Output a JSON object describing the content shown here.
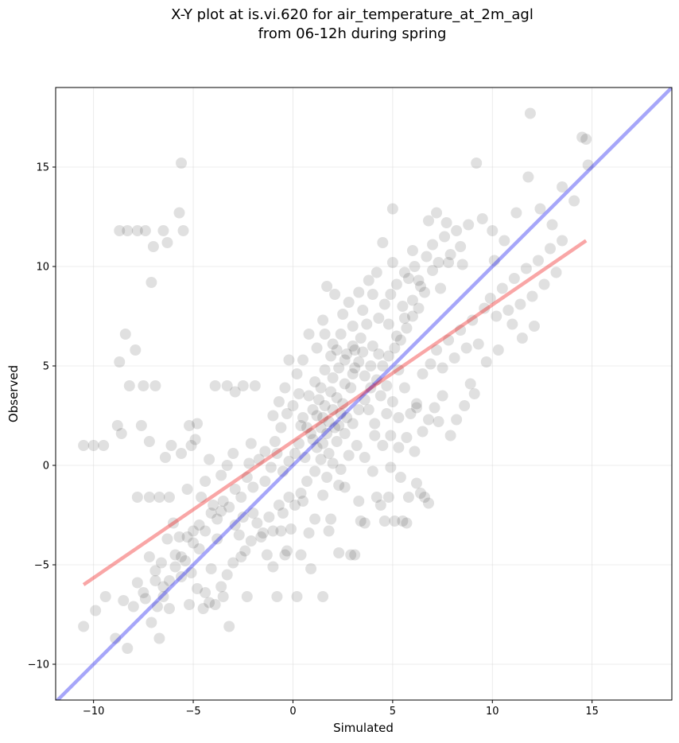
{
  "chart_data": {
    "type": "scatter",
    "title_lines": [
      "X-Y plot at is.vi.620 for air_temperature_at_2m_agl",
      "from 06-12h during spring"
    ],
    "xlabel": "Simulated",
    "ylabel": "Observed",
    "xlim": [
      -11.9,
      19.0
    ],
    "ylim": [
      -11.8,
      19.0
    ],
    "xticks": [
      {
        "value": -10,
        "label": "−10"
      },
      {
        "value": -5,
        "label": "−5"
      },
      {
        "value": 0,
        "label": "0"
      },
      {
        "value": 5,
        "label": "5"
      },
      {
        "value": 10,
        "label": "10"
      },
      {
        "value": 15,
        "label": "15"
      }
    ],
    "yticks": [
      {
        "value": -10,
        "label": "−10"
      },
      {
        "value": -5,
        "label": "−5"
      },
      {
        "value": 0,
        "label": "0"
      },
      {
        "value": 5,
        "label": "5"
      },
      {
        "value": 10,
        "label": "10"
      },
      {
        "value": 15,
        "label": "15"
      }
    ],
    "grid": true,
    "point_color": "#000000",
    "point_opacity": 0.12,
    "points": [
      [
        -10.5,
        -8.1
      ],
      [
        -9.9,
        -7.3
      ],
      [
        -9.4,
        -6.6
      ],
      [
        -8.9,
        -8.7
      ],
      [
        -8.5,
        -6.8
      ],
      [
        -8.3,
        -9.2
      ],
      [
        -8.0,
        -7.1
      ],
      [
        -7.8,
        -5.9
      ],
      [
        -7.5,
        -6.4
      ],
      [
        -7.2,
        -4.6
      ],
      [
        -6.9,
        -5.3
      ],
      [
        -6.7,
        -8.7
      ],
      [
        -6.5,
        -6.1
      ],
      [
        -6.2,
        -7.2
      ],
      [
        -5.9,
        -4.5
      ],
      [
        -5.6,
        -5.6
      ],
      [
        -5.2,
        -7.0
      ],
      [
        -5.0,
        -3.3
      ],
      [
        -4.7,
        -4.2
      ],
      [
        -4.4,
        -6.4
      ],
      [
        -4.1,
        -5.2
      ],
      [
        -3.8,
        -3.7
      ],
      [
        -3.5,
        -6.6
      ],
      [
        -3.2,
        -8.1
      ],
      [
        -2.9,
        -3.0
      ],
      [
        -2.6,
        -4.6
      ],
      [
        -2.3,
        -6.6
      ],
      [
        -2.0,
        -2.4
      ],
      [
        -1.6,
        -3.6
      ],
      [
        -1.3,
        -4.5
      ],
      [
        -1.0,
        -5.1
      ],
      [
        -0.7,
        -2.0
      ],
      [
        -0.4,
        -4.5
      ],
      [
        -0.1,
        -3.2
      ],
      [
        0.2,
        -6.6
      ],
      [
        0.5,
        -1.8
      ],
      [
        0.8,
        -3.4
      ],
      [
        1.1,
        -2.7
      ],
      [
        1.5,
        -1.5
      ],
      [
        1.9,
        -2.7
      ],
      [
        2.3,
        -4.4
      ],
      [
        2.6,
        -1.1
      ],
      [
        2.9,
        -4.5
      ],
      [
        3.3,
        -1.8
      ],
      [
        3.6,
        -2.9
      ],
      [
        4.0,
        -0.3
      ],
      [
        4.4,
        -2.0
      ],
      [
        4.8,
        -1.6
      ],
      [
        5.1,
        -2.8
      ],
      [
        5.4,
        -0.6
      ],
      [
        5.8,
        -1.6
      ],
      [
        6.2,
        -0.9
      ],
      [
        6.6,
        -1.6
      ],
      [
        6.8,
        -1.9
      ],
      [
        5.5,
        -2.8
      ],
      [
        4.6,
        -2.8
      ],
      [
        3.1,
        -4.5
      ],
      [
        1.5,
        -6.6
      ],
      [
        0.9,
        -5.2
      ],
      [
        -0.8,
        -6.6
      ],
      [
        -10.5,
        1.0
      ],
      [
        -10.0,
        1.0
      ],
      [
        -9.5,
        1.0
      ],
      [
        -8.8,
        2.0
      ],
      [
        -8.6,
        1.6
      ],
      [
        -8.2,
        4.0
      ],
      [
        -7.9,
        5.8
      ],
      [
        -7.6,
        2.0
      ],
      [
        -7.2,
        1.2
      ],
      [
        -6.9,
        4.0
      ],
      [
        -6.4,
        0.4
      ],
      [
        -6.1,
        1.0
      ],
      [
        -5.6,
        0.6
      ],
      [
        -5.1,
        1.0
      ],
      [
        -4.8,
        2.1
      ],
      [
        -4.2,
        0.3
      ],
      [
        -3.9,
        4.0
      ],
      [
        -3.3,
        4.0
      ],
      [
        -2.9,
        3.7
      ],
      [
        -2.5,
        4.0
      ],
      [
        -2.1,
        1.1
      ],
      [
        -1.9,
        4.0
      ],
      [
        -1.4,
        0.7
      ],
      [
        -1.0,
        2.5
      ],
      [
        -8.7,
        11.8
      ],
      [
        -8.3,
        11.8
      ],
      [
        -7.8,
        11.8
      ],
      [
        -7.4,
        11.8
      ],
      [
        -6.5,
        11.8
      ],
      [
        -6.3,
        11.2
      ],
      [
        -5.5,
        11.8
      ],
      [
        -7.0,
        11.0
      ],
      [
        -7.1,
        9.2
      ],
      [
        -5.7,
        12.7
      ],
      [
        -5.6,
        15.2
      ],
      [
        -8.4,
        6.6
      ],
      [
        -8.7,
        5.2
      ],
      [
        -7.5,
        4.0
      ],
      [
        -5.2,
        2.0
      ],
      [
        -4.9,
        1.3
      ],
      [
        0.3,
        1.1
      ],
      [
        0.6,
        0.4
      ],
      [
        0.9,
        1.6
      ],
      [
        1.2,
        2.5
      ],
      [
        1.4,
        1.9
      ],
      [
        1.6,
        3.0
      ],
      [
        1.8,
        2.2
      ],
      [
        2.0,
        2.8
      ],
      [
        2.2,
        3.4
      ],
      [
        2.4,
        2.6
      ],
      [
        1.0,
        2.8
      ],
      [
        1.3,
        3.3
      ],
      [
        1.5,
        2.4
      ],
      [
        1.7,
        1.6
      ],
      [
        1.9,
        3.7
      ],
      [
        2.1,
        1.9
      ],
      [
        2.3,
        2.0
      ],
      [
        2.5,
        3.1
      ],
      [
        2.7,
        2.4
      ],
      [
        2.9,
        3.9
      ],
      [
        0.8,
        3.5
      ],
      [
        1.1,
        4.2
      ],
      [
        1.4,
        3.9
      ],
      [
        1.6,
        4.8
      ],
      [
        2.0,
        4.4
      ],
      [
        2.3,
        4.9
      ],
      [
        2.6,
        4.1
      ],
      [
        3.0,
        4.6
      ],
      [
        3.3,
        5.2
      ],
      [
        3.6,
        4.5
      ],
      [
        0.5,
        2.4
      ],
      [
        0.7,
        1.9
      ],
      [
        1.0,
        1.3
      ],
      [
        1.2,
        0.9
      ],
      [
        1.5,
        1.1
      ],
      [
        1.8,
        0.6
      ],
      [
        2.2,
        1.2
      ],
      [
        2.6,
        1.6
      ],
      [
        3.0,
        2.1
      ],
      [
        3.3,
        2.8
      ],
      [
        3.6,
        3.3
      ],
      [
        3.9,
        3.9
      ],
      [
        4.2,
        4.3
      ],
      [
        4.5,
        5.0
      ],
      [
        4.8,
        5.5
      ],
      [
        5.1,
        5.9
      ],
      [
        5.4,
        6.3
      ],
      [
        5.7,
        6.9
      ],
      [
        6.0,
        7.5
      ],
      [
        6.3,
        7.9
      ],
      [
        3.1,
        5.8
      ],
      [
        3.4,
        6.4
      ],
      [
        3.7,
        7.1
      ],
      [
        4.0,
        6.0
      ],
      [
        4.3,
        7.4
      ],
      [
        4.6,
        8.1
      ],
      [
        4.9,
        8.6
      ],
      [
        5.2,
        9.1
      ],
      [
        5.5,
        8.0
      ],
      [
        5.8,
        9.4
      ],
      [
        6.1,
        10.0
      ],
      [
        6.4,
        9.0
      ],
      [
        6.7,
        10.5
      ],
      [
        7.0,
        11.1
      ],
      [
        7.3,
        10.2
      ],
      [
        7.6,
        11.5
      ],
      [
        7.9,
        10.6
      ],
      [
        8.2,
        11.8
      ],
      [
        8.5,
        10.1
      ],
      [
        8.8,
        12.1
      ],
      [
        2.4,
        6.6
      ],
      [
        2.0,
        6.1
      ],
      [
        1.6,
        6.6
      ],
      [
        1.2,
        5.9
      ],
      [
        0.8,
        6.6
      ],
      [
        0.5,
        5.3
      ],
      [
        0.2,
        4.6
      ],
      [
        -0.2,
        5.3
      ],
      [
        -0.4,
        3.9
      ],
      [
        -0.7,
        3.2
      ],
      [
        3.8,
        2.8
      ],
      [
        4.1,
        2.1
      ],
      [
        4.4,
        3.5
      ],
      [
        4.7,
        2.6
      ],
      [
        5.0,
        3.2
      ],
      [
        5.3,
        2.4
      ],
      [
        5.6,
        3.9
      ],
      [
        5.9,
        2.6
      ],
      [
        6.2,
        3.1
      ],
      [
        6.5,
        4.6
      ],
      [
        4.1,
        1.5
      ],
      [
        4.5,
        1.0
      ],
      [
        4.9,
        1.5
      ],
      [
        5.3,
        0.9
      ],
      [
        5.7,
        1.4
      ],
      [
        6.1,
        0.7
      ],
      [
        3.6,
        0.4
      ],
      [
        3.2,
        1.0
      ],
      [
        2.8,
        0.5
      ],
      [
        2.4,
        -0.2
      ],
      [
        6.9,
        5.1
      ],
      [
        7.2,
        5.8
      ],
      [
        7.5,
        4.9
      ],
      [
        7.8,
        6.3
      ],
      [
        8.1,
        5.4
      ],
      [
        8.4,
        6.8
      ],
      [
        8.7,
        5.9
      ],
      [
        9.0,
        7.3
      ],
      [
        9.3,
        6.1
      ],
      [
        9.6,
        7.9
      ],
      [
        9.9,
        8.4
      ],
      [
        10.2,
        7.5
      ],
      [
        10.5,
        8.9
      ],
      [
        10.8,
        7.8
      ],
      [
        11.1,
        9.4
      ],
      [
        11.4,
        8.1
      ],
      [
        11.7,
        9.9
      ],
      [
        12.0,
        8.5
      ],
      [
        12.3,
        10.3
      ],
      [
        12.6,
        9.1
      ],
      [
        12.9,
        10.9
      ],
      [
        13.2,
        9.7
      ],
      [
        13.5,
        11.3
      ],
      [
        11.0,
        7.1
      ],
      [
        11.5,
        6.4
      ],
      [
        12.1,
        7.0
      ],
      [
        10.3,
        5.8
      ],
      [
        9.7,
        5.2
      ],
      [
        8.9,
        4.1
      ],
      [
        8.2,
        2.3
      ],
      [
        7.5,
        3.5
      ],
      [
        7.1,
        2.9
      ],
      [
        6.8,
        2.3
      ],
      [
        6.5,
        1.7
      ],
      [
        6.2,
        2.9
      ],
      [
        9.1,
        3.6
      ],
      [
        8.6,
        3.0
      ],
      [
        7.9,
        1.5
      ],
      [
        7.3,
        2.2
      ],
      [
        10.1,
        10.3
      ],
      [
        10.6,
        11.3
      ],
      [
        11.2,
        12.7
      ],
      [
        11.8,
        14.5
      ],
      [
        12.4,
        12.9
      ],
      [
        13.0,
        12.1
      ],
      [
        13.5,
        14.0
      ],
      [
        14.1,
        13.3
      ],
      [
        14.5,
        16.5
      ],
      [
        14.7,
        16.4
      ],
      [
        14.8,
        15.1
      ],
      [
        11.9,
        17.7
      ],
      [
        9.2,
        15.2
      ],
      [
        9.5,
        12.4
      ],
      [
        10.0,
        11.8
      ],
      [
        8.4,
        11.0
      ],
      [
        7.7,
        12.2
      ],
      [
        7.2,
        12.7
      ],
      [
        6.8,
        12.3
      ],
      [
        5.0,
        12.9
      ],
      [
        4.5,
        11.2
      ],
      [
        3.8,
        9.3
      ],
      [
        4.2,
        9.7
      ],
      [
        3.3,
        8.7
      ],
      [
        2.8,
        8.2
      ],
      [
        2.1,
        8.6
      ],
      [
        1.7,
        9.0
      ],
      [
        1.5,
        7.3
      ],
      [
        2.5,
        7.6
      ],
      [
        3.0,
        7.0
      ],
      [
        3.5,
        7.8
      ],
      [
        0.1,
        0.6
      ],
      [
        -0.2,
        0.2
      ],
      [
        -0.5,
        -0.3
      ],
      [
        -0.8,
        0.6
      ],
      [
        -1.1,
        -0.1
      ],
      [
        -1.4,
        -0.8
      ],
      [
        -1.7,
        0.3
      ],
      [
        -2.0,
        -1.1
      ],
      [
        -2.3,
        -0.6
      ],
      [
        -2.6,
        -1.6
      ],
      [
        -2.9,
        -1.2
      ],
      [
        -3.2,
        -2.1
      ],
      [
        -3.5,
        -1.8
      ],
      [
        -3.8,
        -2.7
      ],
      [
        -4.1,
        -2.4
      ],
      [
        -4.4,
        -3.3
      ],
      [
        -4.7,
        -3.0
      ],
      [
        -5.0,
        -3.9
      ],
      [
        -5.3,
        -3.6
      ],
      [
        -5.6,
        -4.6
      ],
      [
        -5.9,
        -5.1
      ],
      [
        -6.2,
        -5.8
      ],
      [
        -6.5,
        -6.6
      ],
      [
        -6.8,
        -7.1
      ],
      [
        -7.1,
        -7.9
      ],
      [
        -7.4,
        -6.7
      ],
      [
        -3.0,
        0.6
      ],
      [
        -3.3,
        0.0
      ],
      [
        -3.6,
        -0.5
      ],
      [
        -2.2,
        0.1
      ],
      [
        -0.9,
        1.2
      ],
      [
        -0.6,
        1.9
      ],
      [
        -0.3,
        2.6
      ],
      [
        0.0,
        3.0
      ],
      [
        0.3,
        3.6
      ],
      [
        0.4,
        2.0
      ],
      [
        1.9,
        5.5
      ],
      [
        2.2,
        5.8
      ],
      [
        2.6,
        5.3
      ],
      [
        3.0,
        6.0
      ],
      [
        4.0,
        8.6
      ],
      [
        4.8,
        7.1
      ],
      [
        5.2,
        6.5
      ],
      [
        5.6,
        7.4
      ],
      [
        6.0,
        8.3
      ],
      [
        6.3,
        9.3
      ],
      [
        6.6,
        8.7
      ],
      [
        7.0,
        9.8
      ],
      [
        7.4,
        8.9
      ],
      [
        7.8,
        10.2
      ],
      [
        5.0,
        10.2
      ],
      [
        5.6,
        9.7
      ],
      [
        6.0,
        10.8
      ],
      [
        5.3,
        4.8
      ],
      [
        4.7,
        4.0
      ],
      [
        4.3,
        5.6
      ],
      [
        3.9,
        5.0
      ],
      [
        3.5,
        5.7
      ],
      [
        3.1,
        4.9
      ],
      [
        2.7,
        5.6
      ],
      [
        1.1,
        -0.3
      ],
      [
        1.4,
        0.3
      ],
      [
        1.7,
        -0.6
      ],
      [
        2.0,
        0.1
      ],
      [
        2.3,
        -1.0
      ],
      [
        0.7,
        -0.8
      ],
      [
        0.4,
        -1.4
      ],
      [
        0.1,
        -2.0
      ],
      [
        -0.2,
        -1.6
      ],
      [
        -0.5,
        -2.4
      ],
      [
        -1.2,
        -2.6
      ],
      [
        -1.5,
        -3.4
      ],
      [
        -1.8,
        -2.9
      ],
      [
        -2.1,
        -3.8
      ],
      [
        -2.4,
        -4.3
      ],
      [
        -2.7,
        -3.5
      ],
      [
        -3.0,
        -4.9
      ],
      [
        -3.3,
        -5.5
      ],
      [
        -3.6,
        -6.1
      ],
      [
        -3.9,
        -7.0
      ],
      [
        -4.2,
        -6.9
      ],
      [
        -4.5,
        -7.2
      ],
      [
        -4.8,
        -6.2
      ],
      [
        -5.1,
        -5.4
      ],
      [
        -5.4,
        -4.8
      ],
      [
        -5.7,
        -3.6
      ],
      [
        -6.0,
        -2.9
      ],
      [
        -6.3,
        -3.7
      ],
      [
        -6.6,
        -4.9
      ],
      [
        -6.9,
        -5.8
      ],
      [
        -7.2,
        -1.6
      ],
      [
        -6.7,
        -1.6
      ],
      [
        -6.2,
        -1.6
      ],
      [
        -5.3,
        -1.2
      ],
      [
        -4.6,
        -1.6
      ],
      [
        -4.0,
        -2.0
      ],
      [
        -3.6,
        -2.3
      ],
      [
        -7.8,
        -1.6
      ],
      [
        -4.4,
        -0.8
      ],
      [
        -2.5,
        -2.6
      ],
      [
        -1.0,
        -3.3
      ],
      [
        -0.6,
        -3.3
      ],
      [
        -0.3,
        -4.3
      ],
      [
        0.4,
        -4.5
      ],
      [
        1.8,
        -3.3
      ],
      [
        3.4,
        -2.8
      ],
      [
        4.2,
        -1.6
      ],
      [
        4.9,
        -0.1
      ],
      [
        5.7,
        -2.9
      ],
      [
        6.4,
        -1.4
      ]
    ],
    "series": [
      {
        "kind": "identity",
        "color": "#0000ee",
        "opacity": 0.35,
        "x": [
          -11.9,
          19.0
        ],
        "y": [
          -11.9,
          19.0
        ]
      },
      {
        "kind": "regression",
        "color": "#ee0000",
        "opacity": 0.35,
        "x": [
          -10.5,
          14.7
        ],
        "y": [
          -6.0,
          11.3
        ]
      }
    ]
  }
}
